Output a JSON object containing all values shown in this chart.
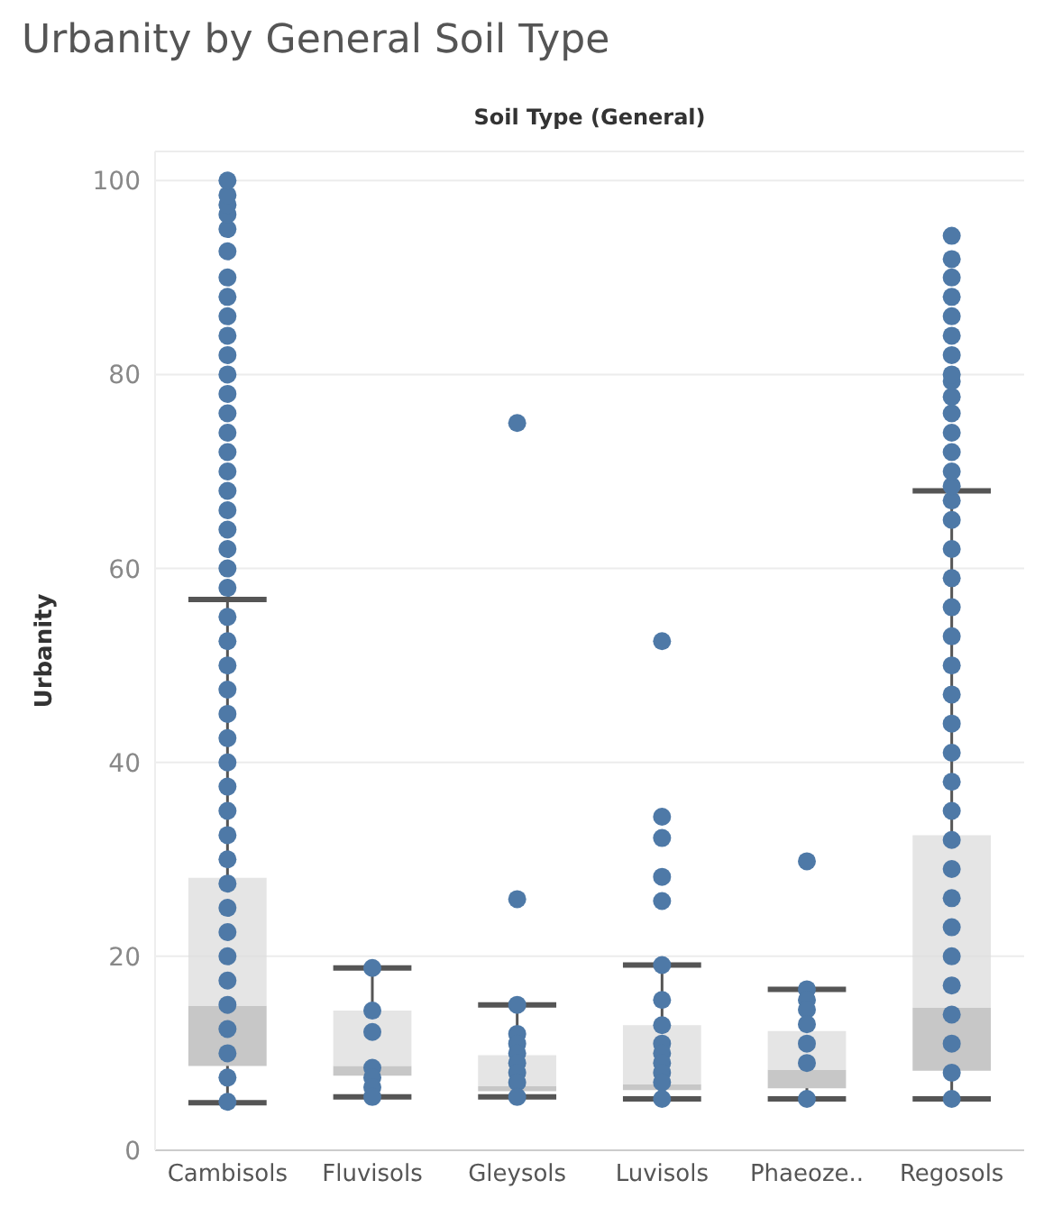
{
  "chart_data": {
    "type": "box",
    "title": "Urbanity by General Soil Type",
    "xlabel": "Soil Type (General)",
    "ylabel": "Urbanity",
    "categories": [
      "Cambisols",
      "Fluvisols",
      "Gleysols",
      "Luvisols",
      "Phaeoze..",
      "Regosols"
    ],
    "ylim": [
      0,
      103
    ],
    "yticks": [
      0,
      20,
      40,
      60,
      80,
      100
    ],
    "grid": "y",
    "boxes": [
      {
        "low": 4.9,
        "q1": 8.7,
        "median": 14.9,
        "q3": 28.1,
        "high": 56.8,
        "outliers": [
          58,
          60,
          62,
          64,
          66,
          68,
          70,
          72,
          74,
          76,
          78,
          80,
          82,
          84,
          86,
          88,
          90,
          92.7,
          95,
          96.5,
          97.5,
          98.5,
          100
        ]
      },
      {
        "low": 5.5,
        "q1": 7.7,
        "median": 8.7,
        "q3": 14.4,
        "high": 18.8
      },
      {
        "low": 5.5,
        "q1": 6.1,
        "median": 6.6,
        "q3": 9.8,
        "high": 15.0,
        "outliers": [
          25.9,
          75
        ]
      },
      {
        "low": 5.3,
        "q1": 6.2,
        "median": 6.8,
        "q3": 12.9,
        "high": 19.1,
        "outliers": [
          25.7,
          28.2,
          32.2,
          34.4,
          52.5
        ]
      },
      {
        "low": 5.3,
        "q1": 6.4,
        "median": 8.3,
        "q3": 12.3,
        "high": 16.6,
        "outliers": [
          29.8
        ]
      },
      {
        "low": 5.3,
        "q1": 8.2,
        "median": 14.7,
        "q3": 32.5,
        "high": 68,
        "outliers": [
          68.5,
          70,
          72,
          74,
          76,
          77.7,
          79.3,
          80,
          82,
          84,
          86,
          88,
          90,
          91.9,
          94.3
        ]
      }
    ],
    "series": [
      {
        "type": "scatter",
        "color": "#4e79a7",
        "x": [
          "Cambisols",
          "Cambisols",
          "Cambisols",
          "Cambisols",
          "Cambisols",
          "Cambisols",
          "Cambisols",
          "Cambisols",
          "Cambisols",
          "Cambisols",
          "Cambisols",
          "Cambisols",
          "Cambisols",
          "Cambisols",
          "Cambisols",
          "Cambisols",
          "Cambisols",
          "Cambisols",
          "Cambisols",
          "Cambisols",
          "Cambisols",
          "Fluvisols",
          "Fluvisols",
          "Fluvisols",
          "Fluvisols",
          "Fluvisols",
          "Fluvisols",
          "Fluvisols",
          "Gleysols",
          "Gleysols",
          "Gleysols",
          "Gleysols",
          "Gleysols",
          "Gleysols",
          "Gleysols",
          "Gleysols",
          "Luvisols",
          "Luvisols",
          "Luvisols",
          "Luvisols",
          "Luvisols",
          "Luvisols",
          "Luvisols",
          "Luvisols",
          "Luvisols",
          "Phaeoze..",
          "Phaeoze..",
          "Phaeoze..",
          "Phaeoze..",
          "Phaeoze..",
          "Phaeoze..",
          "Phaeoze..",
          "Regosols",
          "Regosols",
          "Regosols",
          "Regosols",
          "Regosols",
          "Regosols",
          "Regosols",
          "Regosols",
          "Regosols",
          "Regosols",
          "Regosols",
          "Regosols",
          "Regosols",
          "Regosols",
          "Regosols",
          "Regosols",
          "Regosols",
          "Regosols",
          "Regosols",
          "Regosols",
          "Regosols",
          "Regosols"
        ],
        "values": [
          5,
          7.5,
          10,
          12.5,
          15,
          17.5,
          20,
          22.5,
          25,
          27.5,
          30,
          32.5,
          35,
          37.5,
          40,
          42.5,
          45,
          47.5,
          50,
          52.5,
          55,
          18.8,
          14.4,
          12.2,
          8.5,
          7.5,
          6.5,
          5.5,
          15,
          12,
          11,
          10,
          9,
          8,
          7,
          5.5,
          19.1,
          15.5,
          12.9,
          11,
          10,
          9,
          8,
          7,
          5.3,
          16.6,
          15.5,
          14.5,
          13,
          11,
          9,
          5.3,
          5.3,
          8,
          11,
          14,
          17,
          20,
          23,
          26,
          29,
          32,
          35,
          38,
          41,
          44,
          47,
          50,
          53,
          56,
          59,
          62,
          65,
          67
        ]
      }
    ]
  }
}
